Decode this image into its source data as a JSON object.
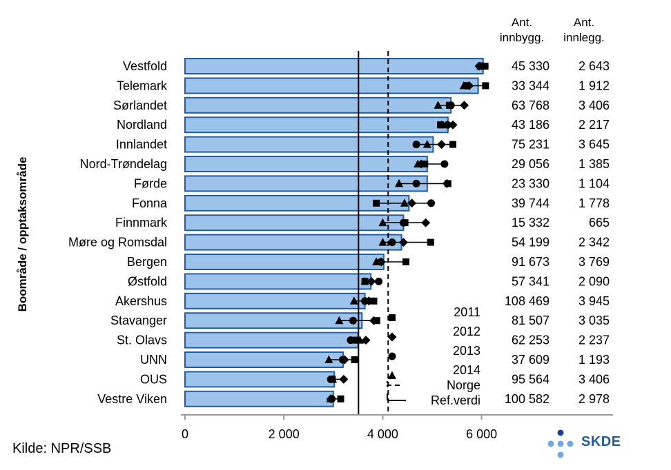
{
  "header": {
    "col1_line1": "Ant.",
    "col1_line2": "innbygg.",
    "col2_line1": "Ant.",
    "col2_line2": "innlegg."
  },
  "source": "Kilde: NPR/SSB",
  "logo_text": "SKDE",
  "colors": {
    "bar_fill": "#9dc3ea",
    "bar_stroke": "#1f5da8",
    "marker": "#000000",
    "logo_dark": "#1f3f8c",
    "logo_light": "#6fa8e3"
  },
  "chart_data": {
    "type": "bar",
    "orientation": "horizontal",
    "ylabel": "Boområde / opptaksområde",
    "xlim": [
      0,
      8500
    ],
    "xticks": [
      0,
      2000,
      4000,
      6000
    ],
    "xtick_labels": [
      "0",
      "2 000",
      "4 000",
      "6 000"
    ],
    "grid": false,
    "categories": [
      "Vestfold",
      "Telemark",
      "Sørlandet",
      "Nordland",
      "Innlandet",
      "Nord-Trøndelag",
      "Førde",
      "Fonna",
      "Finnmark",
      "Møre og Romsdal",
      "Bergen",
      "Østfold",
      "Akershus",
      "Stavanger",
      "St. Olavs",
      "UNN",
      "OUS",
      "Vestre Viken"
    ],
    "bar_values": [
      6030,
      5930,
      5380,
      5320,
      5020,
      4900,
      4900,
      4530,
      4420,
      4380,
      4020,
      3760,
      3640,
      3580,
      3500,
      3200,
      3020,
      3000
    ],
    "series": [
      {
        "name": "2011",
        "marker": "square",
        "values": [
          6070,
          6080,
          5350,
          5170,
          5420,
          4850,
          5320,
          3870,
          4450,
          4970,
          4470,
          3640,
          3820,
          3880,
          3440,
          3430,
          2980,
          3150
        ]
      },
      {
        "name": "2012",
        "marker": "diamond",
        "values": [
          5950,
          5750,
          5650,
          5420,
          5190,
          4780,
          5300,
          4590,
          4870,
          4420,
          3970,
          3770,
          3720,
          3820,
          3660,
          3230,
          3210,
          2950
        ]
      },
      {
        "name": "2013",
        "marker": "circle",
        "values": [
          6020,
          5690,
          5380,
          5310,
          4680,
          5250,
          4680,
          4980,
          4420,
          4190,
          3960,
          3920,
          3640,
          3400,
          3350,
          3190,
          2950,
          2970
        ]
      },
      {
        "name": "2014",
        "marker": "triangle",
        "values": [
          5980,
          5640,
          5120,
          5190,
          4900,
          4710,
          4330,
          4440,
          4000,
          4000,
          3870,
          3640,
          3420,
          3120,
          3540,
          2910,
          2990,
          2940
        ]
      }
    ],
    "reference_lines": [
      {
        "name": "Norge",
        "style": "dashed",
        "value": 4110
      },
      {
        "name": "Ref.verdi",
        "style": "solid",
        "value": 3510
      }
    ],
    "legend": [
      "2011",
      "2012",
      "2013",
      "2014",
      "Norge",
      "Ref.verdi"
    ],
    "legend_position": "bottom-right",
    "table_columns": [
      "Ant. innbygg.",
      "Ant. innlegg."
    ],
    "table": {
      "innbygg": [
        "45 330",
        "33 344",
        "63 768",
        "43 186",
        "75 231",
        "29 056",
        "23 330",
        "39 744",
        "15 332",
        "54 199",
        "91 673",
        "57 341",
        "108 469",
        "81 507",
        "62 253",
        "37 609",
        "95 564",
        "100 582"
      ],
      "innlegg": [
        "2 643",
        "1 912",
        "3 406",
        "2 217",
        "3 645",
        "1 385",
        "1 104",
        "1 778",
        "665",
        "2 342",
        "3 769",
        "2 090",
        "3 945",
        "3 035",
        "2 237",
        "1 193",
        "3 406",
        "2 978"
      ]
    }
  }
}
